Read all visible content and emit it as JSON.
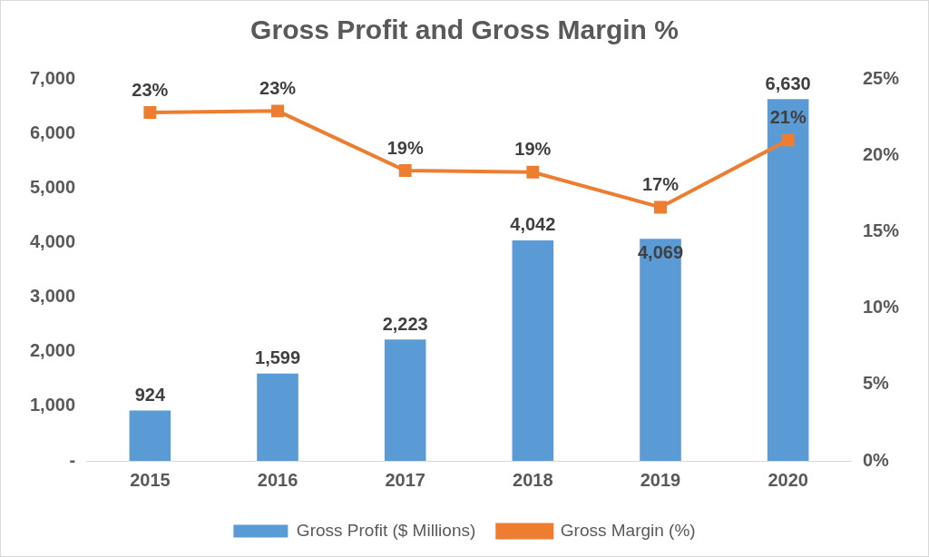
{
  "chart_data": {
    "type": "bar",
    "title": "Gross Profit and Gross Margin %",
    "categories": [
      "2015",
      "2016",
      "2017",
      "2018",
      "2019",
      "2020"
    ],
    "series": [
      {
        "name": "Gross Profit ($ Millions)",
        "type": "bar",
        "color": "#5b9bd5",
        "values": [
          924,
          1599,
          2223,
          4042,
          4069,
          6630
        ],
        "value_labels": [
          "924",
          "1,599",
          "2,223",
          "4,042",
          "4,069",
          "6,630"
        ]
      },
      {
        "name": "Gross Margin (%)",
        "type": "line",
        "axis": "y2",
        "color": "#ed7d31",
        "marker": "square",
        "values": [
          22.8,
          22.9,
          19.0,
          18.9,
          16.6,
          21.0
        ],
        "value_labels": [
          "23%",
          "23%",
          "19%",
          "19%",
          "17%",
          "21%"
        ]
      }
    ],
    "ylim": [
      0,
      7000
    ],
    "yticks": [
      {
        "value": 0,
        "label": "-"
      },
      {
        "value": 1000,
        "label": "1,000"
      },
      {
        "value": 2000,
        "label": "2,000"
      },
      {
        "value": 3000,
        "label": "3,000"
      },
      {
        "value": 4000,
        "label": "4,000"
      },
      {
        "value": 5000,
        "label": "5,000"
      },
      {
        "value": 6000,
        "label": "6,000"
      },
      {
        "value": 7000,
        "label": "7,000"
      }
    ],
    "y2lim": [
      0,
      25
    ],
    "y2ticks": [
      {
        "value": 0,
        "label": "0%"
      },
      {
        "value": 5,
        "label": "5%"
      },
      {
        "value": 10,
        "label": "10%"
      },
      {
        "value": 15,
        "label": "15%"
      },
      {
        "value": 20,
        "label": "20%"
      },
      {
        "value": 25,
        "label": "25%"
      }
    ],
    "grid": false,
    "legend": "bottom",
    "data_labels": true
  }
}
